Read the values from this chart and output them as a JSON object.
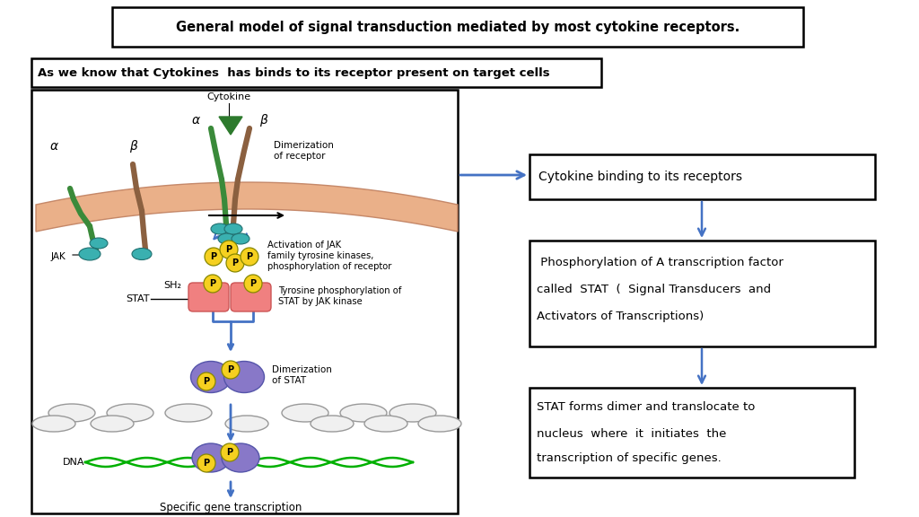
{
  "title": "General model of signal transduction mediated by most cytokine receptors.",
  "subtitle": "As we know that Cytokines  has binds to its receptor present on target cells",
  "box1_text": "Cytokine binding to its receptors",
  "box2_line1": " Phosphorylation of A transcription factor",
  "box2_line2": "called  STAT  (  Signal Transducers  and",
  "box2_line3": "Activators of Transcriptions)",
  "box3_line1": "STAT forms dimer and translocate to",
  "box3_line2": "nucleus  where  it  initiates  the",
  "box3_line3": "transcription of specific genes.",
  "bg_color": "#ffffff",
  "box_edge_color": "#000000",
  "arrow_blue": "#4472c4",
  "membrane_color": "#e8a87c",
  "jak_color": "#3ab0b0",
  "green_receptor": "#3a8a3a",
  "brown_receptor": "#8b6040",
  "p_yellow": "#f5d020",
  "stat_pink": "#f08080",
  "dimer_purple": "#8878c8",
  "dna_green": "#00b000",
  "text_black": "#000000"
}
